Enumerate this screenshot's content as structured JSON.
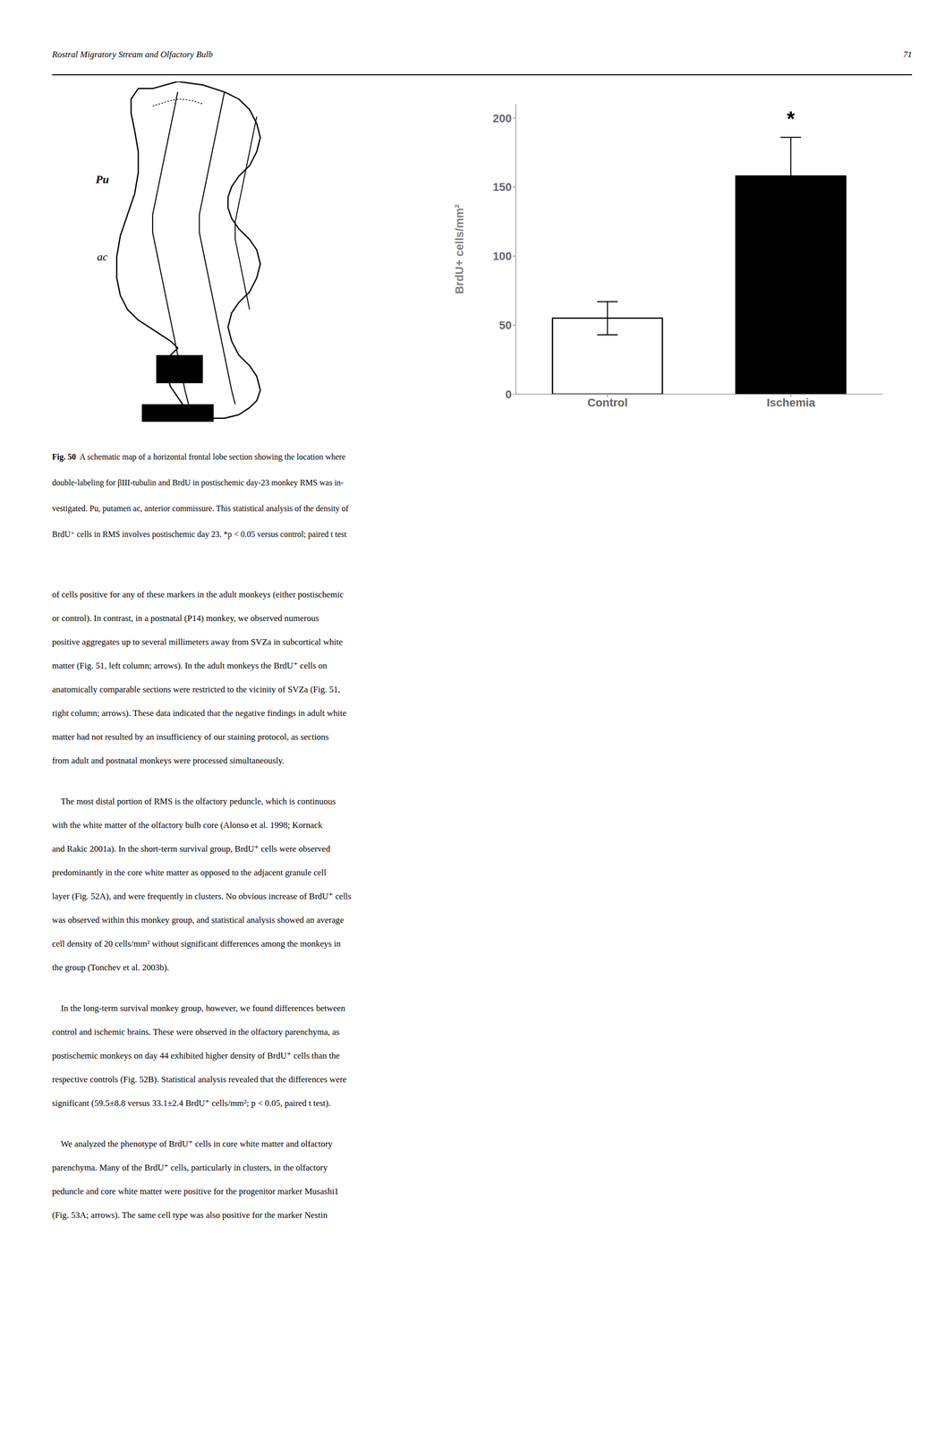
{
  "chart_data": {
    "type": "bar",
    "categories": [
      "Control",
      "Ischemia"
    ],
    "values": [
      55.0,
      158.0
    ],
    "errors": [
      12.0,
      28.0
    ],
    "colors": [
      "white",
      "black"
    ],
    "ylabel": "BrdU+ cells/mm²",
    "ylim": [
      0,
      210
    ],
    "yticks": [
      0,
      50,
      100,
      150,
      200
    ],
    "annotations": [
      {
        "text": "*",
        "category": "Ischemia"
      }
    ],
    "grid": false
  },
  "page": {
    "header": "Rostral Migratory Stream and Olfactory Bulb",
    "page_number": "71",
    "schematic_labels": [
      "Pu",
      "ac"
    ],
    "caption_bold_part": "Fig. 50",
    "caption_lines": [
      "Fig. 50  A schematic map of a horizontal frontal lobe section showing the location where",
      "double-labeling for βIII-tubulin and BrdU in postischemic day-23 monkey RMS was in-",
      "vestigated. Pu, putamen ac, anterior commissure. This statistical analysis of the density of",
      "BrdU⁺ cells in RMS involves postischemic day 23. *p < 0.05 versus control; paired t test"
    ],
    "body_paragraphs": [
      [
        "of cells positive for any of these markers in the adult monkeys (either postischemic",
        "or control). In contrast, in a postnatal (P14) monkey, we observed numerous",
        "positive aggregates up to several millimeters away from SVZa in subcortical white",
        "matter (Fig. 51, left column; arrows). In the adult monkeys the BrdU⁺ cells on",
        "anatomically comparable sections were restricted to the vicinity of SVZa (Fig. 51,",
        "right column; arrows). These data indicated that the negative findings in adult white",
        "matter had not resulted by an insufficiency of our staining protocol, as sections",
        "from adult and postnatal monkeys were processed simultaneously."
      ],
      [
        "    The most distal portion of RMS is the olfactory peduncle, which is continuous",
        "with the white matter of the olfactory bulb core (Alonso et al. 1998; Kornack",
        "and Rakic 2001a). In the short-term survival group, BrdU⁺ cells were observed",
        "predominantly in the core white matter as opposed to the adjacent granule cell",
        "layer (Fig. 52A), and were frequently in clusters. No obvious increase of BrdU⁺ cells",
        "was observed within this monkey group, and statistical analysis showed an average",
        "cell density of 20 cells/mm² without significant differences among the monkeys in",
        "the group (Tonchev et al. 2003b)."
      ],
      [
        "    In the long-term survival monkey group, however, we found differences between",
        "control and ischemic brains. These were observed in the olfactory parenchyma, as",
        "postischemic monkeys on day 44 exhibited higher density of BrdU⁺ cells than the",
        "respective controls (Fig. 52B). Statistical analysis revealed that the differences were",
        "significant (59.5±8.8 versus 33.1±2.4 BrdU⁺ cells/mm²; p < 0.05, paired t test)."
      ],
      [
        "    We analyzed the phenotype of BrdU⁺ cells in core white matter and olfactory",
        "parenchyma. Many of the BrdU⁺ cells, particularly in clusters, in the olfactory",
        "peduncle and core white matter were positive for the progenitor marker Musashi1",
        "(Fig. 53A; arrows). The same cell type was also positive for the marker Nestin"
      ]
    ]
  }
}
